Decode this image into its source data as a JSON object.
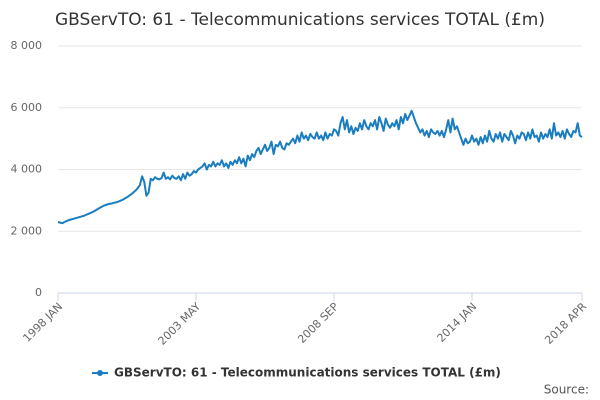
{
  "chart_data": {
    "type": "line",
    "title": "GBServTO: 61 - Telecommunications services TOTAL (£m)",
    "source_label": "Source:",
    "categories": [
      "1998 JAN",
      null,
      null,
      null,
      null,
      null,
      null,
      null,
      null,
      null,
      null,
      null,
      null,
      null,
      null,
      null,
      null,
      null,
      null,
      null,
      null,
      null,
      null,
      null,
      null,
      null,
      null,
      null,
      null,
      null,
      null,
      null,
      null,
      null,
      null,
      null,
      null,
      null,
      null,
      null,
      null,
      null,
      null,
      null,
      null,
      null,
      null,
      null,
      null,
      null,
      null,
      null,
      null,
      null,
      null,
      null,
      null,
      null,
      null,
      null,
      null,
      null,
      null,
      null,
      "2003 MAY",
      null,
      null,
      null,
      null,
      null,
      null,
      null,
      null,
      null,
      null,
      null,
      null,
      null,
      null,
      null,
      null,
      null,
      null,
      null,
      null,
      null,
      null,
      null,
      null,
      null,
      null,
      null,
      null,
      null,
      null,
      null,
      null,
      null,
      null,
      null,
      null,
      null,
      null,
      null,
      null,
      null,
      null,
      null,
      null,
      null,
      null,
      null,
      null,
      null,
      null,
      null,
      null,
      null,
      null,
      null,
      null,
      null,
      null,
      null,
      null,
      null,
      null,
      null,
      "2008 SEP",
      null,
      null,
      null,
      null,
      null,
      null,
      null,
      null,
      null,
      null,
      null,
      null,
      null,
      null,
      null,
      null,
      null,
      null,
      null,
      null,
      null,
      null,
      null,
      null,
      null,
      null,
      null,
      null,
      null,
      null,
      null,
      null,
      null,
      null,
      null,
      null,
      null,
      null,
      null,
      null,
      null,
      null,
      null,
      null,
      null,
      null,
      null,
      null,
      null,
      null,
      null,
      null,
      null,
      null,
      null,
      null,
      null,
      null,
      null,
      null,
      null,
      null,
      null,
      "2014 JAN",
      null,
      null,
      null,
      null,
      null,
      null,
      null,
      null,
      null,
      null,
      null,
      null,
      null,
      null,
      null,
      null,
      null,
      null,
      null,
      null,
      null,
      null,
      null,
      null,
      null,
      null,
      null,
      null,
      null,
      null,
      null,
      null,
      null,
      null,
      null,
      null,
      null,
      null,
      null,
      null,
      null,
      null,
      null,
      null,
      null,
      null,
      null,
      null,
      null,
      null,
      "2018 APR"
    ],
    "series": [
      {
        "name": "GBServTO: 61 - Telecommunications services TOTAL (£m)",
        "color": "#1a7dc0",
        "values": [
          2300,
          2280,
          2260,
          2300,
          2330,
          2360,
          2380,
          2400,
          2420,
          2440,
          2460,
          2480,
          2500,
          2530,
          2560,
          2590,
          2620,
          2660,
          2700,
          2740,
          2780,
          2820,
          2850,
          2870,
          2890,
          2900,
          2920,
          2940,
          2960,
          2990,
          3020,
          3060,
          3100,
          3150,
          3200,
          3260,
          3320,
          3400,
          3500,
          3780,
          3600,
          3150,
          3250,
          3700,
          3650,
          3750,
          3700,
          3680,
          3720,
          3900,
          3700,
          3750,
          3680,
          3800,
          3720,
          3700,
          3780,
          3650,
          3850,
          3700,
          3900,
          3800,
          3850,
          3950,
          3900,
          4000,
          4050,
          4100,
          4200,
          4000,
          4150,
          4100,
          4250,
          4100,
          4200,
          4150,
          4300,
          4100,
          4200,
          4050,
          4250,
          4150,
          4300,
          4200,
          4400,
          4200,
          4350,
          4100,
          4450,
          4300,
          4500,
          4400,
          4600,
          4700,
          4500,
          4650,
          4800,
          4600,
          4700,
          4900,
          4500,
          4800,
          4750,
          4900,
          4700,
          4650,
          4850,
          4800,
          4900,
          5000,
          4850,
          5100,
          4900,
          5200,
          5000,
          5100,
          4950,
          5150,
          5050,
          5000,
          5200,
          5000,
          5100,
          4950,
          5200,
          5000,
          5150,
          5100,
          5300,
          5250,
          5100,
          5500,
          5700,
          5300,
          5600,
          5200,
          5400,
          5150,
          5350,
          5250,
          5500,
          5300,
          5600,
          5400,
          5300,
          5500,
          5400,
          5600,
          5300,
          5700,
          5500,
          5250,
          5650,
          5450,
          5350,
          5500,
          5400,
          5600,
          5300,
          5700,
          5500,
          5800,
          5600,
          5750,
          5900,
          5700,
          5500,
          5350,
          5200,
          5300,
          5100,
          5250,
          5050,
          5300,
          5200,
          5150,
          5250,
          5100,
          5250,
          5050,
          5300,
          5600,
          5200,
          5650,
          5300,
          5400,
          5200,
          5000,
          4800,
          5000,
          4850,
          4900,
          5100,
          4900,
          5000,
          4800,
          5050,
          4850,
          5100,
          4900,
          5250,
          5000,
          4900,
          5150,
          5000,
          5200,
          4900,
          5150,
          5050,
          4950,
          5250,
          5100,
          4850,
          5100,
          5000,
          5200,
          5150,
          4950,
          5200,
          5000,
          5300,
          5050,
          5100,
          4900,
          5200,
          5000,
          5150,
          5050,
          5300,
          5000,
          5500,
          5100,
          5200,
          5050,
          5250,
          5000,
          5300,
          5150,
          5050,
          5250,
          5200,
          5500,
          5100,
          5050
        ]
      }
    ],
    "ylim": [
      0,
      8000
    ],
    "yticks": [
      0,
      {
        "value": 2000,
        "label": "2 000"
      },
      {
        "value": 4000,
        "label": "4 000"
      },
      {
        "value": 6000,
        "label": "6 000"
      },
      {
        "value": 8000,
        "label": "8 000"
      }
    ],
    "grid": true
  }
}
